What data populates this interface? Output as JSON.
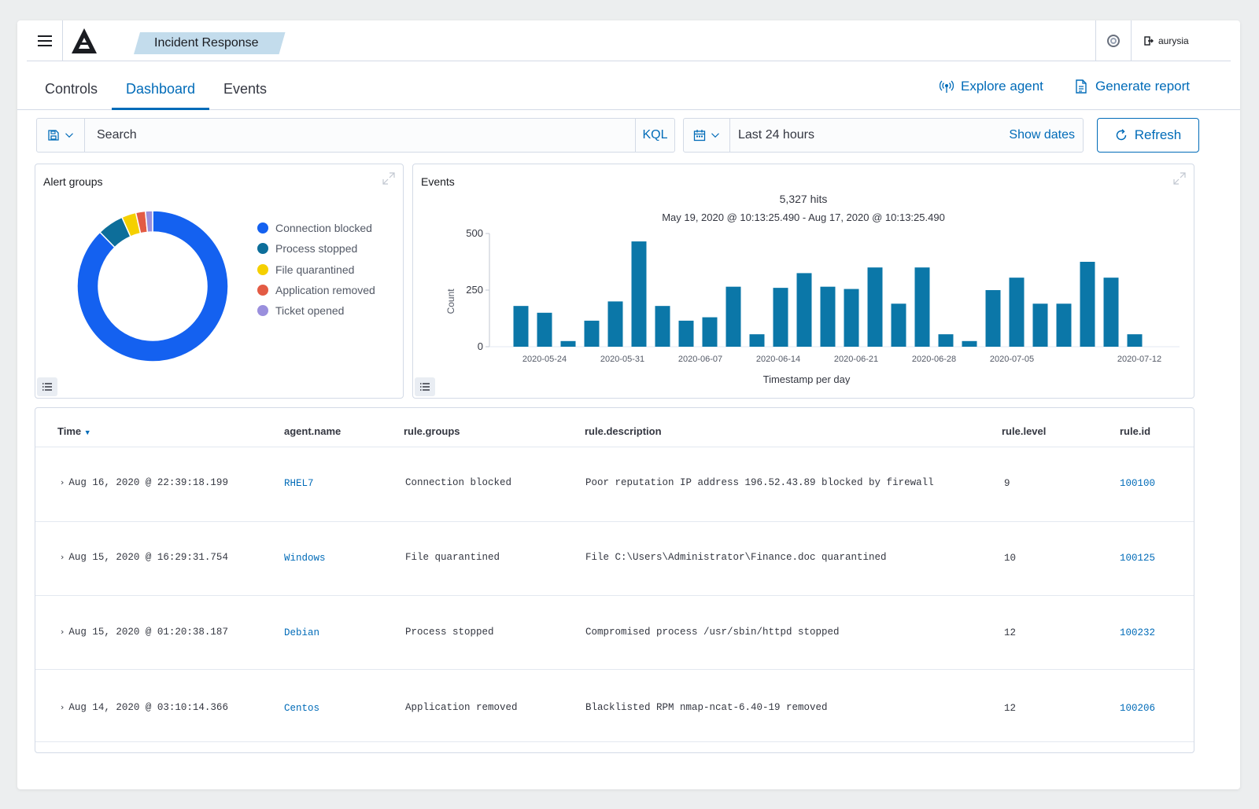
{
  "header": {
    "breadcrumb": "Incident Response",
    "user": "aurysia"
  },
  "tabs": {
    "controls": "Controls",
    "dashboard": "Dashboard",
    "events": "Events",
    "explore_agent": "Explore agent",
    "generate_report": "Generate report"
  },
  "search": {
    "placeholder": "Search",
    "kql": "KQL"
  },
  "datepicker": {
    "range": "Last 24 hours",
    "show_dates": "Show dates",
    "refresh": "Refresh"
  },
  "panels": {
    "alert_groups_title": "Alert groups",
    "events_title": "Events"
  },
  "chart_data": [
    {
      "type": "pie",
      "title": "Alert groups",
      "donut": true,
      "categories": [
        "Connection blocked",
        "Process stopped",
        "File quarantined",
        "Application removed",
        "Ticket opened"
      ],
      "values": [
        85.5,
        5.5,
        3.0,
        2.0,
        1.5
      ],
      "colors": [
        "#1461f0",
        "#0d6e9a",
        "#f5d000",
        "#e35b44",
        "#9a8fdd"
      ]
    },
    {
      "type": "bar",
      "title": "Events",
      "hits_label": "5,327 hits",
      "range_label": "May 19, 2020 @ 10:13:25.490 - Aug 17, 2020 @ 10:13:25.490",
      "ylabel": "Count",
      "xlabel": "Timestamp per day",
      "ylim": [
        0,
        500
      ],
      "yticks": [
        0,
        250,
        500
      ],
      "xtick_labels": [
        {
          "label": "2020-05-24",
          "index": 1
        },
        {
          "label": "2020-05-31",
          "index": 4.3
        },
        {
          "label": "2020-06-07",
          "index": 7.6
        },
        {
          "label": "2020-06-14",
          "index": 10.9
        },
        {
          "label": "2020-06-21",
          "index": 14.2
        },
        {
          "label": "2020-06-28",
          "index": 17.5
        },
        {
          "label": "2020-07-05",
          "index": 20.8
        },
        {
          "label": "2020-07-12",
          "index": 26.2
        }
      ],
      "values": [
        180,
        150,
        25,
        115,
        200,
        465,
        180,
        115,
        130,
        265,
        55,
        260,
        325,
        265,
        255,
        350,
        190,
        350,
        55,
        25,
        250,
        305,
        190,
        190,
        375,
        305,
        55
      ],
      "color": "#0b77a8"
    }
  ],
  "table": {
    "columns": {
      "time": "Time",
      "agent": "agent.name",
      "groups": "rule.groups",
      "description": "rule.description",
      "level": "rule.level",
      "id": "rule.id"
    },
    "rows": [
      {
        "time": "Aug 16, 2020 @ 22:39:18.199",
        "agent": "RHEL7",
        "groups": "Connection blocked",
        "description": "Poor reputation IP address 196.52.43.89 blocked by firewall",
        "level": "9",
        "id": "100100"
      },
      {
        "time": "Aug 15, 2020 @ 16:29:31.754",
        "agent": "Windows",
        "groups": "File quarantined",
        "description": "File C:\\Users\\Administrator\\Finance.doc quarantined",
        "level": "10",
        "id": "100125"
      },
      {
        "time": "Aug 15, 2020 @ 01:20:38.187",
        "agent": "Debian",
        "groups": "Process stopped",
        "description": "Compromised process /usr/sbin/httpd stopped",
        "level": "12",
        "id": "100232"
      },
      {
        "time": "Aug 14, 2020 @ 03:10:14.366",
        "agent": "Centos",
        "groups": "Application removed",
        "description": "Blacklisted RPM nmap-ncat-6.40-19 removed",
        "level": "12",
        "id": "100206"
      }
    ]
  }
}
